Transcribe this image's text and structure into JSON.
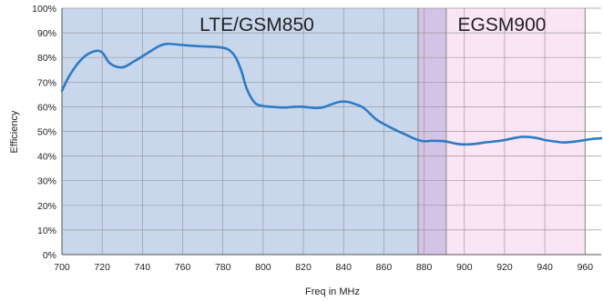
{
  "chart_data": {
    "type": "line",
    "title": "",
    "xlabel": "Freq in MHz",
    "ylabel": "Efficiency",
    "xlim": [
      700,
      968
    ],
    "ylim": [
      0,
      100
    ],
    "x_ticks": [
      700,
      720,
      740,
      760,
      780,
      800,
      820,
      840,
      860,
      880,
      900,
      920,
      940,
      960
    ],
    "y_ticks": [
      0,
      10,
      20,
      30,
      40,
      50,
      60,
      70,
      80,
      90,
      100
    ],
    "y_tick_format": "percent",
    "x_tick_labels": [
      "700",
      "720",
      "740",
      "760",
      "780",
      "800",
      "820",
      "840",
      "860",
      "880",
      "900",
      "920",
      "940",
      "960"
    ],
    "y_tick_labels": [
      "0%",
      "10%",
      "20%",
      "30%",
      "40%",
      "50%",
      "60%",
      "70%",
      "80%",
      "90%",
      "100%"
    ],
    "grid": true,
    "bands": [
      {
        "label": "LTE/GSM850",
        "x_start": 700,
        "x_end": 891,
        "color": "#c9d7ec"
      },
      {
        "label": "EGSM900",
        "x_start": 877,
        "x_end": 960,
        "color": "#f8dcf2"
      }
    ],
    "series": [
      {
        "color": "#2e7bc4",
        "x": [
          700,
          704,
          710,
          716,
          720,
          724,
          730,
          736,
          742,
          748,
          752,
          758,
          764,
          770,
          776,
          782,
          786,
          789,
          792,
          796,
          800,
          804,
          810,
          816,
          820,
          826,
          830,
          834,
          838,
          842,
          846,
          850,
          856,
          860,
          866,
          870,
          876,
          880,
          884,
          890,
          896,
          900,
          906,
          910,
          916,
          920,
          926,
          930,
          936,
          940,
          946,
          950,
          956,
          960,
          964,
          968
        ],
        "y": [
          66.5,
          73,
          79.5,
          82.5,
          82,
          77.5,
          76,
          78.5,
          81.5,
          84.5,
          85.5,
          85.2,
          84.8,
          84.5,
          84.3,
          83.5,
          80.5,
          75,
          67,
          61.5,
          60.3,
          60,
          59.7,
          60,
          60,
          59.5,
          59.8,
          61,
          62,
          62,
          61,
          59.5,
          55,
          53,
          50.5,
          49,
          46.8,
          46,
          46.2,
          46,
          45,
          44.7,
          45,
          45.5,
          46,
          46.5,
          47.5,
          47.8,
          47.3,
          46.5,
          45.8,
          45.5,
          46,
          46.5,
          47,
          47.2
        ]
      }
    ]
  }
}
